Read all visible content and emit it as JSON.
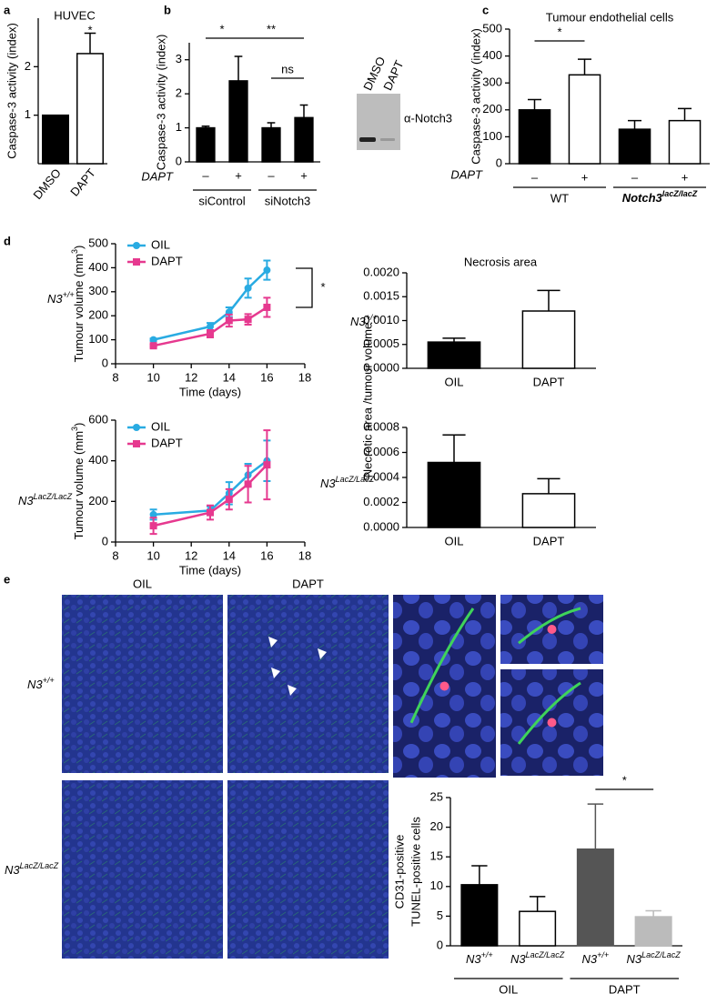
{
  "chart_data": [
    {
      "type": "bar",
      "panel": "a",
      "title": "HUVEC",
      "ylabel": "Caspase-3 activity (index)",
      "categories": [
        "DMSO",
        "DAPT"
      ],
      "values": [
        1,
        2.27
      ],
      "errors": [
        null,
        0.42
      ],
      "colors": [
        "#000000",
        "#ffffff"
      ],
      "ylim": [
        0,
        3
      ],
      "yticks": [
        1,
        2
      ],
      "annotations": [
        "*"
      ]
    },
    {
      "type": "bar",
      "panel": "b",
      "ylabel": "Caspase-3 activity (index)",
      "row_label": "DAPT",
      "categories": [
        "–",
        "+",
        "–",
        "+"
      ],
      "values": [
        1.0,
        2.38,
        1.0,
        1.3
      ],
      "errors": [
        0.05,
        0.72,
        0.15,
        0.37
      ],
      "colors": [
        "#000000",
        "#000000",
        "#000000",
        "#000000"
      ],
      "ylim": [
        0,
        3.5
      ],
      "yticks": [
        0,
        1,
        2,
        3
      ],
      "groups": [
        "siControl",
        "siNotch3"
      ],
      "annotations": [
        "*",
        "**",
        "ns"
      ],
      "blot": {
        "lanes": [
          "DMSO",
          "DAPT"
        ],
        "label": "α-Notch3"
      }
    },
    {
      "type": "bar",
      "panel": "c",
      "title": "Tumour endothelial cells",
      "ylabel": "Caspase-3 activity (index)",
      "row_label": "DAPT",
      "categories": [
        "–",
        "+",
        "–",
        "+"
      ],
      "values": [
        200,
        330,
        128,
        160
      ],
      "errors": [
        38,
        58,
        32,
        45
      ],
      "colors": [
        "#000000",
        "#ffffff",
        "#000000",
        "#ffffff"
      ],
      "ylim": [
        0,
        500
      ],
      "yticks": [
        0,
        100,
        200,
        300,
        400,
        500
      ],
      "groups": [
        "WT",
        {
          "base": "Notch3",
          "sup": "lacZ/lacZ"
        }
      ],
      "annotations": [
        "*"
      ]
    },
    {
      "type": "line",
      "panel": "d",
      "row_label": {
        "base": "N3",
        "sup": "+/+"
      },
      "xlabel": "Time (days)",
      "ylabel": {
        "base": "Tumour volume (mm",
        "sup": "3",
        "tail": ")"
      },
      "x": [
        10,
        13,
        14,
        15,
        16
      ],
      "series": [
        {
          "name": "OIL",
          "color": "#29abe2",
          "marker": "circle",
          "values": [
            100,
            155,
            215,
            315,
            390
          ],
          "errors": [
            5,
            15,
            20,
            40,
            40
          ]
        },
        {
          "name": "DAPT",
          "color": "#e6398f",
          "marker": "square",
          "values": [
            75,
            125,
            180,
            185,
            235
          ],
          "errors": [
            5,
            15,
            25,
            22,
            40
          ]
        }
      ],
      "xlim": [
        8,
        18
      ],
      "xticks": [
        8,
        10,
        12,
        14,
        16,
        18
      ],
      "ylim": [
        0,
        500
      ],
      "yticks": [
        0,
        100,
        200,
        300,
        400,
        500
      ],
      "annotations": [
        "*"
      ]
    },
    {
      "type": "line",
      "row_label": {
        "base": "N3",
        "sup": "LacZ/LacZ"
      },
      "xlabel": "Time (days)",
      "ylabel": {
        "base": "Tumour volume (mm",
        "sup": "3",
        "tail": ")"
      },
      "x": [
        10,
        13,
        14,
        15,
        16
      ],
      "series": [
        {
          "name": "OIL",
          "color": "#29abe2",
          "marker": "circle",
          "values": [
            135,
            155,
            240,
            330,
            400
          ],
          "errors": [
            25,
            20,
            55,
            55,
            100
          ]
        },
        {
          "name": "DAPT",
          "color": "#e6398f",
          "marker": "square",
          "values": [
            80,
            145,
            210,
            285,
            380
          ],
          "errors": [
            40,
            35,
            50,
            90,
            170
          ]
        }
      ],
      "xlim": [
        8,
        18
      ],
      "xticks": [
        8,
        10,
        12,
        14,
        16,
        18
      ],
      "ylim": [
        0,
        600
      ],
      "yticks": [
        0,
        200,
        400,
        600
      ]
    },
    {
      "type": "bar",
      "title": "Necrosis area",
      "row_label": {
        "base": "N3",
        "sup": "+/+"
      },
      "ylabel": "Necrotic area /tumour volume",
      "categories": [
        "OIL",
        "DAPT"
      ],
      "values": [
        0.00055,
        0.0012
      ],
      "errors": [
        8e-05,
        0.00043
      ],
      "colors": [
        "#000000",
        "#ffffff"
      ],
      "ylim": [
        0,
        0.002
      ],
      "yticks": [
        {
          "value": 0,
          "label": "0.0000"
        },
        {
          "value": 0.0005,
          "label": "0.0005"
        },
        {
          "value": 0.001,
          "label": "0.0010"
        },
        {
          "value": 0.0015,
          "label": "0.0015"
        },
        {
          "value": 0.002,
          "label": "0.0020"
        }
      ]
    },
    {
      "type": "bar",
      "row_label": {
        "base": "N3",
        "sup": "LacZ/LacZ"
      },
      "categories": [
        "OIL",
        "DAPT"
      ],
      "values": [
        0.00052,
        0.00027
      ],
      "errors": [
        0.00022,
        0.00012
      ],
      "colors": [
        "#000000",
        "#ffffff"
      ],
      "ylim": [
        0,
        0.0008
      ],
      "yticks": [
        {
          "value": 0,
          "label": "0.0000"
        },
        {
          "value": 0.0002,
          "label": "0.0002"
        },
        {
          "value": 0.0004,
          "label": "0.0004"
        },
        {
          "value": 0.0006,
          "label": "0.0006"
        },
        {
          "value": 0.0008,
          "label": "0.0008"
        }
      ]
    },
    {
      "type": "micrograph",
      "panel": "e",
      "columns": [
        "OIL",
        "DAPT"
      ],
      "rows": [
        {
          "base": "N3",
          "sup": "+/+"
        },
        {
          "base": "N3",
          "sup": "LacZ/LacZ"
        }
      ]
    },
    {
      "type": "bar",
      "ylabel": [
        "CD31-positive",
        "TUNEL-positive cells"
      ],
      "categories": [
        {
          "base": "N3",
          "sup": "+/+"
        },
        {
          "base": "N3",
          "sup": "LacZ/LacZ"
        },
        {
          "base": "N3",
          "sup": "+/+"
        },
        {
          "base": "N3",
          "sup": "LacZ/LacZ"
        }
      ],
      "values": [
        10.3,
        5.8,
        16.3,
        4.9
      ],
      "errors": [
        3.2,
        2.5,
        7.6,
        1.0
      ],
      "colors": [
        "#000000",
        "#ffffff",
        "#555555",
        "#bbbbbb"
      ],
      "ylim": [
        0,
        25
      ],
      "yticks": [
        0,
        5,
        10,
        15,
        20,
        25
      ],
      "groups": [
        "OIL",
        "DAPT"
      ],
      "annotations": [
        "*"
      ]
    }
  ]
}
